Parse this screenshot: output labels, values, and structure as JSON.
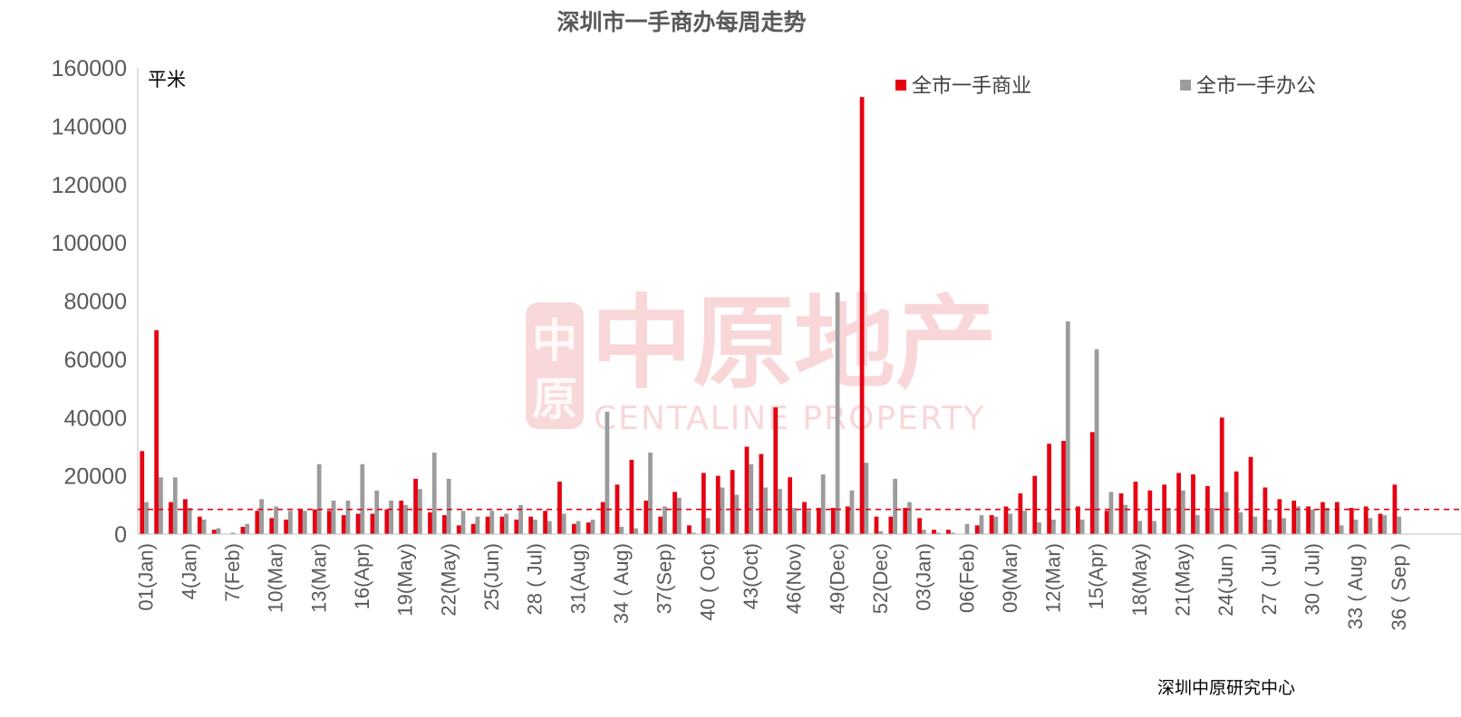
{
  "colors": {
    "commercial": "#e50012",
    "office": "#9c9c9c",
    "text": "#595959",
    "axis": "#bfbfbf",
    "watermark": "#e23b45"
  },
  "watermark": {
    "logo_chars": [
      "中",
      "原"
    ],
    "chinese": "中原地产",
    "english": "CENTALINE PROPERTY"
  },
  "source": "深圳中原研究中心",
  "chart_data": {
    "type": "bar",
    "title": "深圳市一手商办每周走势",
    "ylabel": "平米",
    "xlabel": "",
    "ylim": [
      0,
      160000
    ],
    "yticks": [
      0,
      20000,
      40000,
      60000,
      80000,
      100000,
      120000,
      140000,
      160000
    ],
    "grid": false,
    "legend": "top-right",
    "reference_line": {
      "value": 8500,
      "style": "dashed",
      "color": "#e50012"
    },
    "x_labels": [
      "01(Jan)",
      "4(Jan)",
      "7(Feb)",
      "10(Mar)",
      "13(Mar)",
      "16(Apr)",
      "19(May)",
      "22(May)",
      "25(Jun)",
      "28 ( Jul)",
      "31(Aug)",
      "34 ( Aug)",
      "37(Sep)",
      "40 ( Oct)",
      "43(Oct)",
      "46(Nov)",
      "49(Dec)",
      "52(Dec)",
      "03(Jan)",
      "06(Feb)",
      "09(Mar)",
      "12(Mar)",
      "15(Apr)",
      "18(May)",
      "21(May)",
      "24(Jun )",
      "27 ( Jul)",
      "30 ( Jul)",
      "33 ( Aug )",
      "36 ( Sep )"
    ],
    "x_label_every": 3,
    "series": [
      {
        "name": "全市一手商业",
        "color": "#e50012",
        "values": [
          28500,
          70000,
          11000,
          12000,
          6000,
          1500,
          0,
          2500,
          8000,
          5500,
          5000,
          8500,
          8500,
          8000,
          6500,
          7000,
          7000,
          8500,
          11500,
          19000,
          7500,
          6500,
          3000,
          3500,
          6000,
          6000,
          5000,
          6000,
          8000,
          18000,
          3500,
          4000,
          11000,
          17000,
          25500,
          11500,
          6000,
          14500,
          3000,
          21000,
          20000,
          22000,
          30000,
          27500,
          43500,
          19500,
          11000,
          9000,
          9000,
          9500,
          150000,
          6000,
          6000,
          9000,
          5500,
          1500,
          1500,
          0,
          3000,
          6500,
          9500,
          14000,
          20000,
          31000,
          32000,
          9500,
          35000,
          8000,
          14000,
          18000,
          15000,
          17000,
          21000,
          20500,
          16500,
          40000,
          21500,
          26500,
          16000,
          12000,
          11500,
          9500,
          11000,
          11000,
          9000,
          9500,
          7000,
          17000
        ]
      },
      {
        "name": "全市一手办公",
        "color": "#9c9c9c",
        "values": [
          11000,
          19500,
          19500,
          9000,
          5000,
          2000,
          500,
          3500,
          12000,
          9500,
          8000,
          8000,
          24000,
          11500,
          11500,
          24000,
          15000,
          11500,
          10000,
          15500,
          28000,
          19000,
          8000,
          6000,
          8000,
          7000,
          10000,
          5000,
          4500,
          7000,
          4500,
          5000,
          42000,
          2500,
          2000,
          28000,
          9500,
          12500,
          500,
          5500,
          16000,
          13500,
          24000,
          16000,
          15500,
          9000,
          8000,
          20500,
          83000,
          15000,
          24500,
          1000,
          19000,
          11000,
          1500,
          500,
          500,
          3500,
          6500,
          6000,
          7000,
          8000,
          4000,
          5000,
          73000,
          5000,
          63500,
          14500,
          10000,
          4500,
          4500,
          9000,
          15000,
          6500,
          9000,
          14500,
          7500,
          6000,
          5000,
          5500,
          9500,
          8500,
          9000,
          3000,
          5000,
          5500,
          6500,
          6000
        ]
      }
    ]
  }
}
